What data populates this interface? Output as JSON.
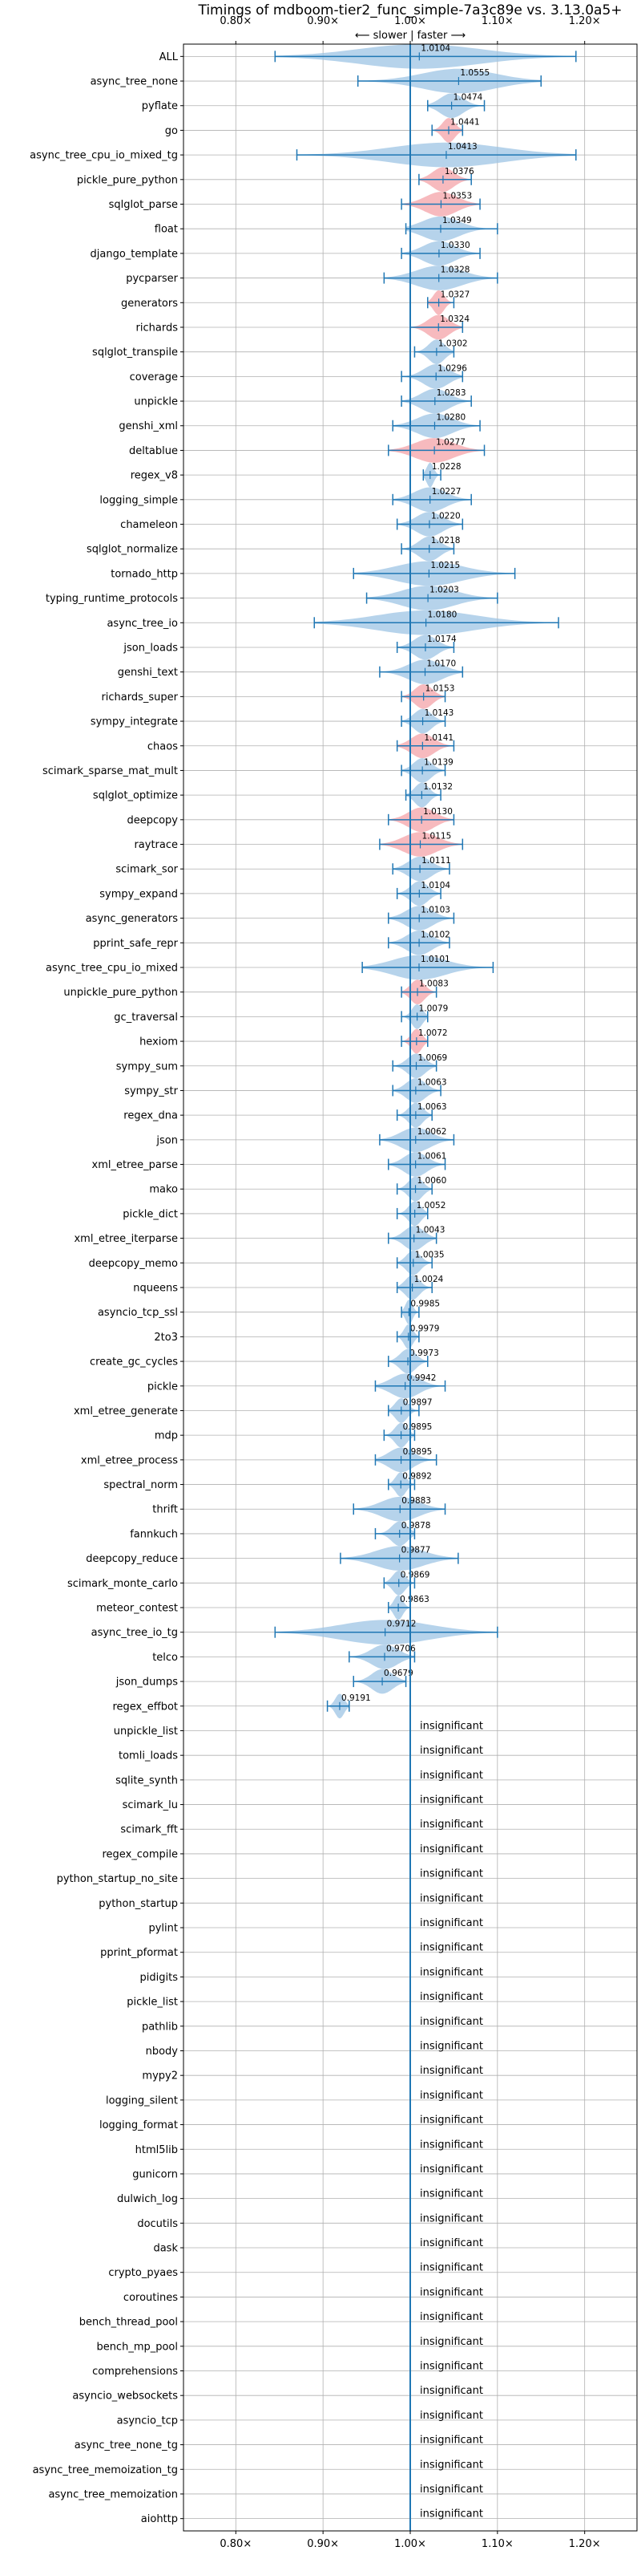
{
  "chart_data": {
    "type": "violin",
    "title": "Timings of mdboom-tier2_func_simple-7a3c89e vs. 3.13.0a5+",
    "direction_label": "⟵ slower | faster ⟶",
    "xlim": [
      0.74,
      1.26
    ],
    "x_ticks": [
      0.8,
      0.9,
      1.0,
      1.1,
      1.2
    ],
    "x_tick_labels": [
      "0.80×",
      "0.90×",
      "1.00×",
      "1.10×",
      "1.20×"
    ],
    "reference_x": 1.0,
    "grid": true,
    "colors": {
      "faster": "#9ec4e4",
      "slower": "#f4a3a8",
      "line": "#1f77b4"
    },
    "insignificant_label": "insignificant",
    "categories": [
      "ALL",
      "async_tree_none",
      "pyflate",
      "go",
      "async_tree_cpu_io_mixed_tg",
      "pickle_pure_python",
      "sqlglot_parse",
      "float",
      "django_template",
      "pycparser",
      "generators",
      "richards",
      "sqlglot_transpile",
      "coverage",
      "unpickle",
      "genshi_xml",
      "deltablue",
      "regex_v8",
      "logging_simple",
      "chameleon",
      "sqlglot_normalize",
      "tornado_http",
      "typing_runtime_protocols",
      "async_tree_io",
      "json_loads",
      "genshi_text",
      "richards_super",
      "sympy_integrate",
      "chaos",
      "scimark_sparse_mat_mult",
      "sqlglot_optimize",
      "deepcopy",
      "raytrace",
      "scimark_sor",
      "sympy_expand",
      "async_generators",
      "pprint_safe_repr",
      "async_tree_cpu_io_mixed",
      "unpickle_pure_python",
      "gc_traversal",
      "hexiom",
      "sympy_sum",
      "sympy_str",
      "regex_dna",
      "json",
      "xml_etree_parse",
      "mako",
      "pickle_dict",
      "xml_etree_iterparse",
      "deepcopy_memo",
      "nqueens",
      "asyncio_tcp_ssl",
      "2to3",
      "create_gc_cycles",
      "pickle",
      "xml_etree_generate",
      "mdp",
      "xml_etree_process",
      "spectral_norm",
      "thrift",
      "fannkuch",
      "deepcopy_reduce",
      "scimark_monte_carlo",
      "meteor_contest",
      "async_tree_io_tg",
      "telco",
      "json_dumps",
      "regex_effbot",
      "unpickle_list",
      "tomli_loads",
      "sqlite_synth",
      "scimark_lu",
      "scimark_fft",
      "regex_compile",
      "python_startup_no_site",
      "python_startup",
      "pylint",
      "pprint_pformat",
      "pidigits",
      "pickle_list",
      "pathlib",
      "nbody",
      "mypy2",
      "logging_silent",
      "logging_format",
      "html5lib",
      "gunicorn",
      "dulwich_log",
      "docutils",
      "dask",
      "crypto_pyaes",
      "coroutines",
      "bench_thread_pool",
      "bench_mp_pool",
      "comprehensions",
      "asyncio_websockets",
      "asyncio_tcp",
      "async_tree_none_tg",
      "async_tree_memoization_tg",
      "async_tree_memoization",
      "aiohttp"
    ],
    "means": [
      1.0104,
      1.0555,
      1.0474,
      1.0441,
      1.0413,
      1.0376,
      1.0353,
      1.0349,
      1.033,
      1.0328,
      1.0327,
      1.0324,
      1.0302,
      1.0296,
      1.0283,
      1.028,
      1.0277,
      1.0228,
      1.0227,
      1.022,
      1.0218,
      1.0215,
      1.0203,
      1.018,
      1.0174,
      1.017,
      1.0153,
      1.0143,
      1.0141,
      1.0139,
      1.0132,
      1.013,
      1.0115,
      1.0111,
      1.0104,
      1.0103,
      1.0102,
      1.0101,
      1.0083,
      1.0079,
      1.0072,
      1.0069,
      1.0063,
      1.0063,
      1.0062,
      1.0061,
      1.006,
      1.0052,
      1.0043,
      1.0035,
      1.0024,
      0.9985,
      0.9979,
      0.9973,
      0.9942,
      0.9897,
      0.9895,
      0.9895,
      0.9892,
      0.9883,
      0.9878,
      0.9877,
      0.9869,
      0.9863,
      0.9712,
      0.9706,
      0.9679,
      0.9191,
      null,
      null,
      null,
      null,
      null,
      null,
      null,
      null,
      null,
      null,
      null,
      null,
      null,
      null,
      null,
      null,
      null,
      null,
      null,
      null,
      null,
      null,
      null,
      null,
      null,
      null,
      null,
      null,
      null,
      null,
      null,
      null,
      null
    ],
    "value_labels": [
      "1.0104",
      "1.0555",
      "1.0474",
      "1.0441",
      "1.0413",
      "1.0376",
      "1.0353",
      "1.0349",
      "1.0330",
      "1.0328",
      "1.0327",
      "1.0324",
      "1.0302",
      "1.0296",
      "1.0283",
      "1.0280",
      "1.0277",
      "1.0228",
      "1.0227",
      "1.0220",
      "1.0218",
      "1.0215",
      "1.0203",
      "1.0180",
      "1.0174",
      "1.0170",
      "1.0153",
      "1.0143",
      "1.0141",
      "1.0139",
      "1.0132",
      "1.0130",
      "1.0115",
      "1.0111",
      "1.0104",
      "1.0103",
      "1.0102",
      "1.0101",
      "1.0083",
      "1.0079",
      "1.0072",
      "1.0069",
      "1.0063",
      "1.0063",
      "1.0062",
      "1.0061",
      "1.0060",
      "1.0052",
      "1.0043",
      "1.0035",
      "1.0024",
      "0.9985",
      "0.9979",
      "0.9973",
      "0.9942",
      "0.9897",
      "0.9895",
      "0.9895",
      "0.9892",
      "0.9883",
      "0.9878",
      "0.9877",
      "0.9869",
      "0.9863",
      "0.9712",
      "0.9706",
      "0.9679",
      "0.9191"
    ],
    "ranges": [
      [
        0.845,
        1.19
      ],
      [
        0.94,
        1.15
      ],
      [
        1.02,
        1.085
      ],
      [
        1.025,
        1.06
      ],
      [
        0.87,
        1.19
      ],
      [
        1.01,
        1.07
      ],
      [
        0.99,
        1.08
      ],
      [
        0.995,
        1.1
      ],
      [
        0.99,
        1.08
      ],
      [
        0.97,
        1.1
      ],
      [
        1.02,
        1.05
      ],
      [
        1.0,
        1.06
      ],
      [
        1.005,
        1.05
      ],
      [
        0.99,
        1.06
      ],
      [
        0.99,
        1.07
      ],
      [
        0.98,
        1.08
      ],
      [
        0.975,
        1.085
      ],
      [
        1.015,
        1.035
      ],
      [
        0.98,
        1.07
      ],
      [
        0.985,
        1.06
      ],
      [
        0.99,
        1.05
      ],
      [
        0.935,
        1.12
      ],
      [
        0.95,
        1.1
      ],
      [
        0.89,
        1.17
      ],
      [
        0.985,
        1.05
      ],
      [
        0.965,
        1.06
      ],
      [
        0.99,
        1.04
      ],
      [
        0.99,
        1.04
      ],
      [
        0.985,
        1.05
      ],
      [
        0.99,
        1.04
      ],
      [
        0.995,
        1.035
      ],
      [
        0.975,
        1.05
      ],
      [
        0.965,
        1.06
      ],
      [
        0.98,
        1.045
      ],
      [
        0.985,
        1.035
      ],
      [
        0.975,
        1.05
      ],
      [
        0.975,
        1.045
      ],
      [
        0.945,
        1.095
      ],
      [
        0.99,
        1.03
      ],
      [
        0.99,
        1.02
      ],
      [
        0.99,
        1.02
      ],
      [
        0.98,
        1.03
      ],
      [
        0.98,
        1.035
      ],
      [
        0.985,
        1.025
      ],
      [
        0.965,
        1.05
      ],
      [
        0.975,
        1.04
      ],
      [
        0.985,
        1.025
      ],
      [
        0.985,
        1.02
      ],
      [
        0.975,
        1.03
      ],
      [
        0.985,
        1.025
      ],
      [
        0.985,
        1.025
      ],
      [
        0.99,
        1.01
      ],
      [
        0.985,
        1.01
      ],
      [
        0.975,
        1.02
      ],
      [
        0.96,
        1.04
      ],
      [
        0.975,
        1.01
      ],
      [
        0.97,
        1.005
      ],
      [
        0.96,
        1.03
      ],
      [
        0.975,
        1.005
      ],
      [
        0.935,
        1.04
      ],
      [
        0.96,
        1.005
      ],
      [
        0.92,
        1.055
      ],
      [
        0.97,
        1.005
      ],
      [
        0.975,
        1.0
      ],
      [
        0.845,
        1.1
      ],
      [
        0.93,
        1.005
      ],
      [
        0.935,
        0.995
      ],
      [
        0.905,
        0.93
      ]
    ],
    "slower": [
      "go",
      "pickle_pure_python",
      "sqlglot_parse",
      "generators",
      "richards",
      "deltablue",
      "richards_super",
      "chaos",
      "deepcopy",
      "raytrace",
      "unpickle_pure_python",
      "hexiom"
    ]
  }
}
